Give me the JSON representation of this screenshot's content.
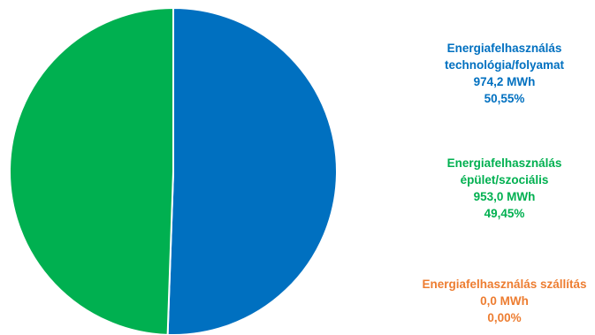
{
  "chart_data": {
    "type": "pie",
    "unit": "MWh",
    "slices": [
      {
        "label_lines": [
          "Energiafelhasználás",
          "technológia/folyamat"
        ],
        "value": 974.2,
        "value_text": "974,2 MWh",
        "percent": 50.55,
        "percent_text": "50,55%",
        "color": "#0070C0"
      },
      {
        "label_lines": [
          "Energiafelhasználás",
          "épület/szociális"
        ],
        "value": 953.0,
        "value_text": "953,0 MWh",
        "percent": 49.45,
        "percent_text": "49,45%",
        "color": "#00B050"
      },
      {
        "label_lines": [
          "Energiafelhasználás  szállítás"
        ],
        "value": 0.0,
        "value_text": "0,0 MWh",
        "percent": 0.0,
        "percent_text": "0,00%",
        "color": "#ED7D31"
      }
    ],
    "legend_position": "right"
  }
}
